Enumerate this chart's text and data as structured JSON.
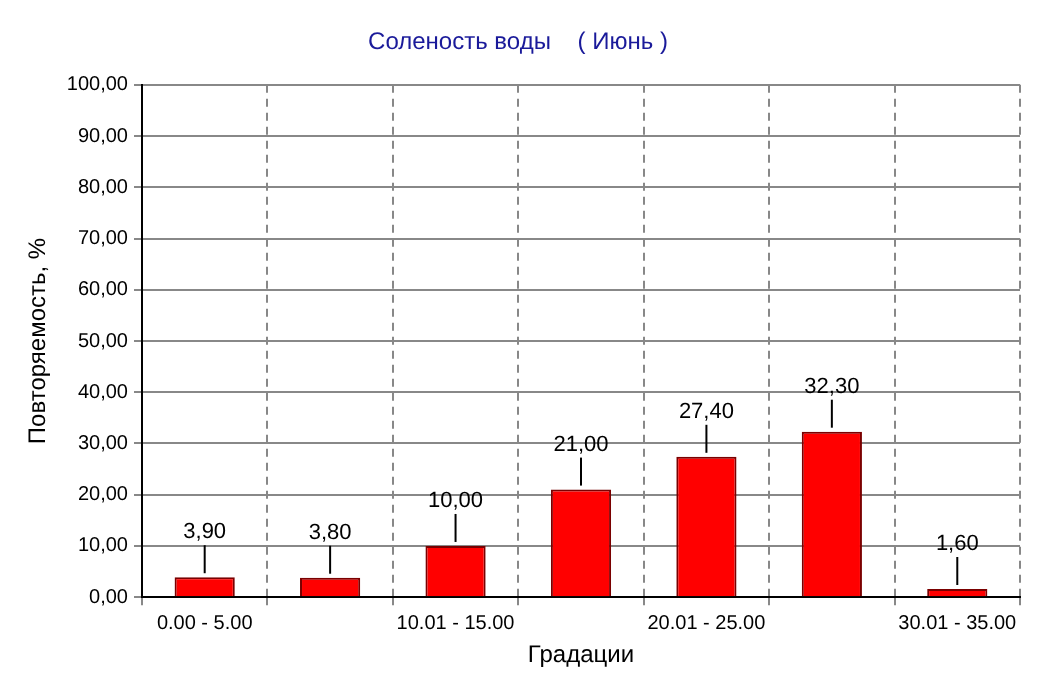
{
  "chart_data": {
    "type": "bar",
    "title": "Соленость воды    ( Июнь )",
    "xlabel": "Градации",
    "ylabel": "Повторяемость, %",
    "categories": [
      "0.00 - 5.00",
      null,
      "10.01 - 15.00",
      null,
      "20.01 - 25.00",
      null,
      "30.01 - 35.00"
    ],
    "values": [
      3.9,
      3.8,
      10,
      21,
      27.4,
      32.3,
      1.6
    ],
    "value_labels": [
      "3,90",
      "3,80",
      "10,00",
      "21,00",
      "27,40",
      "32,30",
      "1,60"
    ],
    "color": "#ff0000",
    "ylim": [
      0,
      100
    ],
    "yticks": [
      {
        "value": 0,
        "label": "0,00"
      },
      {
        "value": 10,
        "label": "10,00"
      },
      {
        "value": 20,
        "label": "20,00"
      },
      {
        "value": 30,
        "label": "30,00"
      },
      {
        "value": 40,
        "label": "40,00"
      },
      {
        "value": 50,
        "label": "50,00"
      },
      {
        "value": 60,
        "label": "60,00"
      },
      {
        "value": 70,
        "label": "70,00"
      },
      {
        "value": 80,
        "label": "80,00"
      },
      {
        "value": 90,
        "label": "90,00"
      },
      {
        "value": 100,
        "label": "100,00"
      }
    ],
    "grid": true
  }
}
